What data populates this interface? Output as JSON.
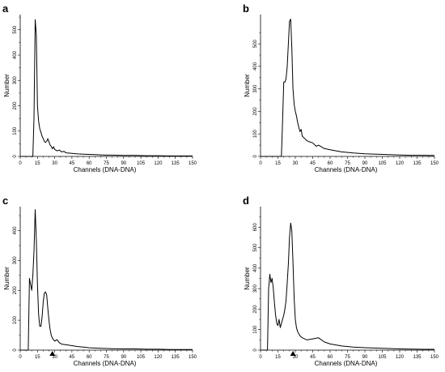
{
  "chart_data": [
    {
      "type": "line",
      "panel_label": "a",
      "xlabel": "Channels (DNA-DNA)",
      "ylabel": "Number",
      "xlim": [
        0,
        150
      ],
      "ylim": [
        0,
        560
      ],
      "x_ticks": [
        0,
        15,
        30,
        45,
        60,
        75,
        90,
        105,
        120,
        135,
        150
      ],
      "y_ticks": [
        0,
        100,
        200,
        300,
        400,
        500
      ],
      "y_tick_labels": [
        "0",
        "100",
        "200",
        "300",
        "400",
        "500"
      ],
      "marker": null,
      "series": [
        {
          "x": [
            0,
            11,
            12,
            13,
            14,
            15,
            16,
            17,
            18,
            19,
            20,
            21,
            22,
            23,
            24,
            25,
            26,
            27,
            28,
            29,
            30,
            32,
            34,
            36,
            38,
            40,
            45,
            50,
            55,
            60,
            65,
            70,
            75,
            80,
            90,
            100,
            110,
            120,
            130,
            140,
            150
          ],
          "y": [
            0,
            0,
            150,
            540,
            480,
            200,
            140,
            110,
            95,
            80,
            70,
            60,
            55,
            60,
            70,
            58,
            45,
            40,
            30,
            38,
            28,
            22,
            25,
            18,
            20,
            14,
            12,
            10,
            9,
            8,
            7,
            6,
            5,
            5,
            4,
            4,
            3,
            3,
            2,
            2,
            2
          ]
        }
      ]
    },
    {
      "type": "line",
      "panel_label": "b",
      "xlabel": "Channels (DNA-DNA)",
      "ylabel": "Number",
      "xlim": [
        0,
        150
      ],
      "ylim": [
        0,
        630
      ],
      "x_ticks": [
        0,
        15,
        30,
        45,
        60,
        75,
        90,
        105,
        120,
        135,
        150
      ],
      "y_ticks": [
        0,
        100,
        200,
        300,
        400,
        500
      ],
      "y_tick_labels": [
        "0",
        "100",
        "200",
        "300",
        "400",
        "500"
      ],
      "marker": null,
      "series": [
        {
          "x": [
            0,
            18,
            19,
            20,
            21,
            22,
            23,
            24,
            25,
            26,
            27,
            28,
            29,
            30,
            31,
            32,
            33,
            34,
            35,
            36,
            38,
            40,
            42,
            45,
            48,
            50,
            55,
            60,
            65,
            70,
            80,
            90,
            100,
            110,
            120,
            130,
            140,
            150
          ],
          "y": [
            0,
            0,
            150,
            330,
            330,
            345,
            400,
            500,
            600,
            610,
            480,
            300,
            230,
            200,
            180,
            150,
            130,
            110,
            120,
            90,
            80,
            70,
            65,
            60,
            45,
            50,
            35,
            30,
            25,
            20,
            15,
            12,
            10,
            8,
            6,
            5,
            5,
            4
          ]
        }
      ]
    },
    {
      "type": "line",
      "panel_label": "c",
      "xlabel": "Channels (DNA-DNA)",
      "ylabel": "Number",
      "xlim": [
        0,
        150
      ],
      "ylim": [
        0,
        480
      ],
      "x_ticks": [
        0,
        15,
        30,
        45,
        60,
        75,
        90,
        105,
        120,
        135,
        150
      ],
      "y_ticks": [
        0,
        100,
        200,
        300,
        400
      ],
      "y_tick_labels": [
        "0",
        "100",
        "200",
        "300",
        "400"
      ],
      "marker": 28,
      "series": [
        {
          "x": [
            0,
            7,
            8,
            9,
            10,
            11,
            12,
            13,
            14,
            15,
            16,
            17,
            18,
            19,
            20,
            21,
            22,
            23,
            24,
            25,
            26,
            27,
            28,
            29,
            30,
            32,
            34,
            36,
            40,
            45,
            50,
            55,
            60,
            70,
            80,
            90,
            100,
            110,
            120,
            130,
            140,
            150
          ],
          "y": [
            0,
            0,
            240,
            220,
            200,
            250,
            330,
            470,
            370,
            220,
            120,
            80,
            80,
            110,
            160,
            190,
            195,
            185,
            140,
            100,
            70,
            50,
            40,
            35,
            30,
            35,
            25,
            20,
            18,
            15,
            12,
            10,
            8,
            6,
            5,
            4,
            4,
            3,
            3,
            2,
            2,
            2
          ]
        }
      ]
    },
    {
      "type": "line",
      "panel_label": "d",
      "xlabel": "Channels (DNA-DNA)",
      "ylabel": "Number",
      "xlim": [
        0,
        150
      ],
      "ylim": [
        0,
        700
      ],
      "x_ticks": [
        0,
        15,
        30,
        45,
        60,
        75,
        90,
        105,
        120,
        135,
        150
      ],
      "y_ticks": [
        0,
        100,
        200,
        300,
        400,
        500,
        600
      ],
      "y_tick_labels": [
        "0",
        "100",
        "200",
        "300",
        "400",
        "500",
        "600"
      ],
      "marker": 28,
      "series": [
        {
          "x": [
            0,
            6,
            7,
            8,
            9,
            10,
            11,
            12,
            13,
            14,
            15,
            16,
            17,
            18,
            19,
            20,
            21,
            22,
            23,
            24,
            25,
            26,
            27,
            28,
            29,
            30,
            31,
            32,
            33,
            34,
            35,
            36,
            38,
            40,
            45,
            50,
            55,
            60,
            70,
            80,
            90,
            100,
            110,
            120,
            130,
            140,
            150
          ],
          "y": [
            0,
            0,
            300,
            370,
            330,
            350,
            300,
            230,
            170,
            130,
            120,
            150,
            110,
            130,
            150,
            170,
            200,
            240,
            330,
            420,
            550,
            620,
            580,
            430,
            250,
            150,
            110,
            90,
            80,
            70,
            65,
            60,
            55,
            50,
            55,
            60,
            40,
            30,
            20,
            15,
            12,
            10,
            8,
            6,
            5,
            4,
            4
          ]
        }
      ]
    }
  ]
}
